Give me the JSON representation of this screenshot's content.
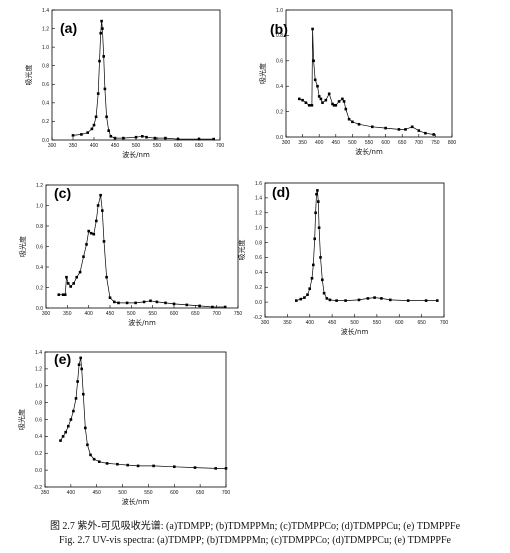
{
  "figure": {
    "caption_cn": "图 2.7  紫外-可见吸收光谱: (a)TDMPP; (b)TDMPPMn; (c)TDMPPCo; (d)TDMPPCu; (e) TDMPPFe",
    "caption_en": "Fig. 2.7 UV-vis spectra: (a)TDMPP; (b)TDMPPMn; (c)TDMPPCo; (d)TDMPPCu; (e) TDMPPFe"
  },
  "chart_data": [
    {
      "type": "scatter",
      "panel": "(a)",
      "xlabel": "波长/nm",
      "ylabel": "吸光度",
      "xlim": [
        300,
        700
      ],
      "ylim": [
        0,
        1.4
      ],
      "xticks": [
        300,
        350,
        400,
        450,
        500,
        550,
        600,
        650,
        700
      ],
      "yticks": [
        0.0,
        0.2,
        0.4,
        0.6,
        0.8,
        1.0,
        1.2,
        1.4
      ],
      "grid": false,
      "x": [
        350,
        370,
        385,
        395,
        400,
        405,
        410,
        413,
        416,
        418,
        420,
        423,
        426,
        430,
        435,
        440,
        450,
        470,
        500,
        515,
        525,
        545,
        570,
        600,
        650,
        685
      ],
      "y": [
        0.05,
        0.06,
        0.08,
        0.12,
        0.16,
        0.25,
        0.5,
        0.85,
        1.15,
        1.28,
        1.2,
        0.9,
        0.55,
        0.25,
        0.1,
        0.04,
        0.02,
        0.02,
        0.03,
        0.04,
        0.03,
        0.02,
        0.02,
        0.01,
        0.01,
        0.01
      ]
    },
    {
      "type": "scatter",
      "panel": "(b)",
      "xlabel": "波长/nm",
      "ylabel": "吸光度",
      "xlim": [
        300,
        800
      ],
      "ylim": [
        0,
        1.0
      ],
      "xticks": [
        300,
        350,
        400,
        450,
        500,
        550,
        600,
        650,
        700,
        750,
        800
      ],
      "yticks": [
        0.0,
        0.2,
        0.4,
        0.6,
        0.8,
        1.0
      ],
      "grid": false,
      "x": [
        340,
        350,
        360,
        370,
        378,
        380,
        383,
        388,
        395,
        400,
        405,
        410,
        420,
        430,
        440,
        445,
        450,
        460,
        470,
        475,
        480,
        490,
        500,
        520,
        560,
        600,
        640,
        660,
        680,
        700,
        720,
        745
      ],
      "y": [
        0.3,
        0.29,
        0.27,
        0.25,
        0.25,
        0.85,
        0.6,
        0.45,
        0.4,
        0.32,
        0.3,
        0.27,
        0.29,
        0.34,
        0.26,
        0.25,
        0.25,
        0.28,
        0.3,
        0.28,
        0.22,
        0.14,
        0.12,
        0.1,
        0.08,
        0.07,
        0.06,
        0.06,
        0.08,
        0.05,
        0.03,
        0.02
      ]
    },
    {
      "type": "scatter",
      "panel": "(c)",
      "xlabel": "波长/nm",
      "ylabel": "吸光度",
      "xlim": [
        300,
        750
      ],
      "ylim": [
        0,
        1.2
      ],
      "xticks": [
        300,
        350,
        400,
        450,
        500,
        550,
        600,
        650,
        700,
        750
      ],
      "yticks": [
        0.0,
        0.2,
        0.4,
        0.6,
        0.8,
        1.0,
        1.2
      ],
      "grid": false,
      "x": [
        330,
        340,
        345,
        348,
        352,
        358,
        365,
        372,
        380,
        388,
        395,
        400,
        406,
        412,
        418,
        422,
        428,
        432,
        436,
        442,
        450,
        460,
        470,
        490,
        510,
        530,
        545,
        560,
        580,
        600,
        630,
        660,
        690,
        720
      ],
      "y": [
        0.13,
        0.13,
        0.13,
        0.3,
        0.24,
        0.21,
        0.24,
        0.3,
        0.35,
        0.5,
        0.62,
        0.75,
        0.73,
        0.72,
        0.85,
        1.0,
        1.1,
        0.95,
        0.65,
        0.3,
        0.1,
        0.06,
        0.05,
        0.05,
        0.05,
        0.06,
        0.07,
        0.06,
        0.05,
        0.04,
        0.03,
        0.02,
        0.01,
        0.01
      ]
    },
    {
      "type": "scatter",
      "panel": "(d)",
      "xlabel": "波长/nm",
      "ylabel": "吸光度",
      "xlim": [
        300,
        700
      ],
      "ylim": [
        -0.2,
        1.6
      ],
      "xticks": [
        300,
        350,
        400,
        450,
        500,
        550,
        600,
        650,
        700
      ],
      "yticks": [
        -0.2,
        0.0,
        0.2,
        0.4,
        0.6,
        0.8,
        1.0,
        1.2,
        1.4,
        1.6
      ],
      "grid": false,
      "x": [
        370,
        380,
        388,
        395,
        400,
        405,
        408,
        411,
        413,
        415,
        417,
        419,
        421,
        424,
        428,
        432,
        438,
        445,
        460,
        480,
        510,
        530,
        545,
        560,
        580,
        620,
        660,
        685
      ],
      "y": [
        0.02,
        0.04,
        0.06,
        0.1,
        0.18,
        0.32,
        0.5,
        0.85,
        1.2,
        1.45,
        1.5,
        1.35,
        1.0,
        0.6,
        0.3,
        0.12,
        0.05,
        0.03,
        0.02,
        0.02,
        0.03,
        0.05,
        0.06,
        0.05,
        0.03,
        0.02,
        0.02,
        0.02
      ]
    },
    {
      "type": "scatter",
      "panel": "(e)",
      "xlabel": "波长/nm",
      "ylabel": "吸光度",
      "xlim": [
        350,
        700
      ],
      "ylim": [
        -0.2,
        1.4
      ],
      "xticks": [
        350,
        400,
        450,
        500,
        550,
        600,
        650,
        700
      ],
      "yticks": [
        -0.2,
        0.0,
        0.2,
        0.4,
        0.6,
        0.8,
        1.0,
        1.2,
        1.4
      ],
      "grid": false,
      "x": [
        380,
        385,
        390,
        395,
        400,
        405,
        410,
        413,
        416,
        419,
        421,
        424,
        428,
        432,
        438,
        445,
        455,
        470,
        490,
        510,
        530,
        560,
        600,
        640,
        680,
        700
      ],
      "y": [
        0.35,
        0.4,
        0.45,
        0.52,
        0.6,
        0.7,
        0.85,
        1.05,
        1.25,
        1.33,
        1.2,
        0.9,
        0.5,
        0.3,
        0.18,
        0.13,
        0.1,
        0.08,
        0.07,
        0.06,
        0.05,
        0.05,
        0.04,
        0.03,
        0.02,
        0.02
      ]
    }
  ]
}
